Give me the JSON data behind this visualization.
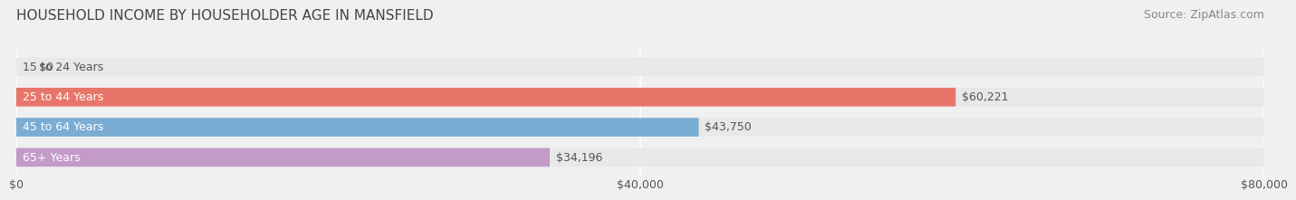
{
  "title": "HOUSEHOLD INCOME BY HOUSEHOLDER AGE IN MANSFIELD",
  "source": "Source: ZipAtlas.com",
  "categories": [
    "15 to 24 Years",
    "25 to 44 Years",
    "45 to 64 Years",
    "65+ Years"
  ],
  "values": [
    0,
    60221,
    43750,
    34196
  ],
  "bar_colors": [
    "#f5c896",
    "#e8756a",
    "#7badd4",
    "#c49ac8"
  ],
  "label_colors": [
    "#333333",
    "#333333",
    "#333333",
    "#333333"
  ],
  "xlim": [
    0,
    80000
  ],
  "xticks": [
    0,
    40000,
    80000
  ],
  "xticklabels": [
    "$0",
    "$40,000",
    "$80,000"
  ],
  "background_color": "#f0f0f0",
  "bar_background_color": "#e8e8e8",
  "title_fontsize": 11,
  "source_fontsize": 9,
  "tick_fontsize": 9,
  "label_fontsize": 9,
  "value_fontsize": 9,
  "bar_height": 0.62,
  "figsize": [
    14.06,
    2.33
  ]
}
